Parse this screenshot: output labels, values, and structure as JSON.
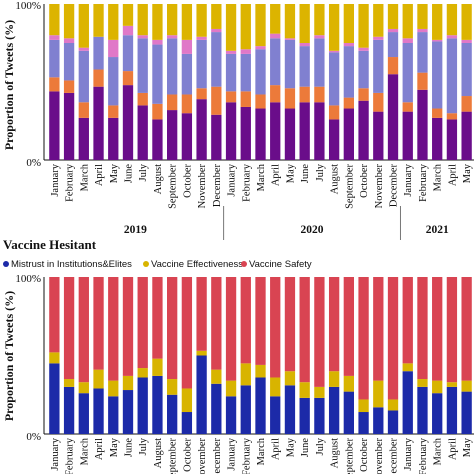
{
  "chart_data": [
    {
      "type": "bar",
      "stacked": true,
      "title": "",
      "ylabel": "Proportion of Tweets (%)",
      "ylim": [
        0,
        100
      ],
      "yticks": [
        "0%",
        "100%"
      ],
      "year_labels": [
        {
          "label": "2019",
          "start": 0,
          "end": 11
        },
        {
          "label": "2020",
          "start": 12,
          "end": 23
        },
        {
          "label": "2021",
          "start": 24,
          "end": 28
        }
      ],
      "categories": [
        "January",
        "February",
        "March",
        "April",
        "May",
        "June",
        "July",
        "August",
        "September",
        "October",
        "November",
        "December",
        "January",
        "February",
        "March",
        "April",
        "May",
        "June",
        "July",
        "August",
        "September",
        "October",
        "November",
        "December",
        "January",
        "February",
        "March",
        "April",
        "May"
      ],
      "series": [
        {
          "color": "#6a0d8a",
          "values": [
            44,
            43,
            27,
            47,
            27,
            48,
            35,
            26,
            32,
            30,
            39,
            29,
            37,
            34,
            33,
            37,
            33,
            37,
            37,
            26,
            33,
            38,
            31,
            55,
            31,
            45,
            27,
            26,
            31
          ]
        },
        {
          "color": "#ec7a3a",
          "values": [
            9,
            8,
            10,
            11,
            8,
            9,
            8,
            10,
            10,
            12,
            7,
            18,
            7,
            10,
            9,
            11,
            13,
            10,
            10,
            9,
            7,
            8,
            12,
            11,
            6,
            11,
            6,
            4,
            10
          ]
        },
        {
          "color": "#8080d0",
          "values": [
            24,
            24,
            33,
            21,
            31,
            23,
            35,
            38,
            36,
            26,
            31,
            35,
            24,
            24,
            29,
            30,
            31,
            26,
            31,
            34,
            33,
            24,
            34,
            16,
            38,
            26,
            43,
            48,
            34
          ]
        },
        {
          "color": "#e078c8",
          "values": [
            3,
            3,
            2,
            0,
            11,
            6,
            2,
            3,
            2,
            9,
            2,
            2,
            2,
            3,
            2,
            3,
            1,
            2,
            2,
            1,
            2,
            2,
            2,
            2,
            3,
            2,
            1,
            2,
            2
          ]
        },
        {
          "color": "#dcb400",
          "values": [
            20,
            22,
            28,
            21,
            23,
            14,
            20,
            23,
            20,
            23,
            21,
            16,
            30,
            29,
            27,
            19,
            22,
            25,
            20,
            30,
            25,
            28,
            21,
            16,
            22,
            16,
            23,
            20,
            23
          ]
        }
      ]
    },
    {
      "type": "bar",
      "stacked": true,
      "title": "Vaccine Hesitant",
      "ylabel": "Proportion of Tweets (%)",
      "ylim": [
        0,
        100
      ],
      "yticks": [
        "0%",
        "100%"
      ],
      "legend_position": "top",
      "categories": [
        "January",
        "February",
        "March",
        "April",
        "May",
        "June",
        "July",
        "August",
        "September",
        "October",
        "November",
        "December",
        "January",
        "February",
        "March",
        "April",
        "May",
        "June",
        "July",
        "August",
        "September",
        "October",
        "November",
        "December",
        "January",
        "February",
        "March",
        "April",
        "May"
      ],
      "series": [
        {
          "name": "Mistrust in Institutions&Elites",
          "color": "#1c2aa8",
          "values": [
            45,
            30,
            26,
            29,
            24,
            28,
            36,
            37,
            25,
            14,
            50,
            32,
            24,
            31,
            36,
            24,
            31,
            23,
            23,
            30,
            27,
            14,
            17,
            15,
            40,
            30,
            26,
            30,
            27
          ]
        },
        {
          "name": "Vaccine Effectiveness",
          "color": "#d8b400",
          "values": [
            7,
            5,
            7,
            12,
            10,
            9,
            6,
            11,
            10,
            15,
            3,
            9,
            10,
            14,
            8,
            12,
            9,
            10,
            7,
            10,
            10,
            8,
            17,
            7,
            5,
            5,
            8,
            3,
            7
          ]
        },
        {
          "name": "Vaccine Safety",
          "color": "#d94452",
          "values": [
            48,
            65,
            67,
            59,
            66,
            63,
            58,
            52,
            65,
            71,
            47,
            59,
            66,
            55,
            56,
            64,
            60,
            67,
            70,
            60,
            63,
            78,
            66,
            78,
            55,
            65,
            66,
            67,
            66
          ]
        }
      ]
    }
  ]
}
